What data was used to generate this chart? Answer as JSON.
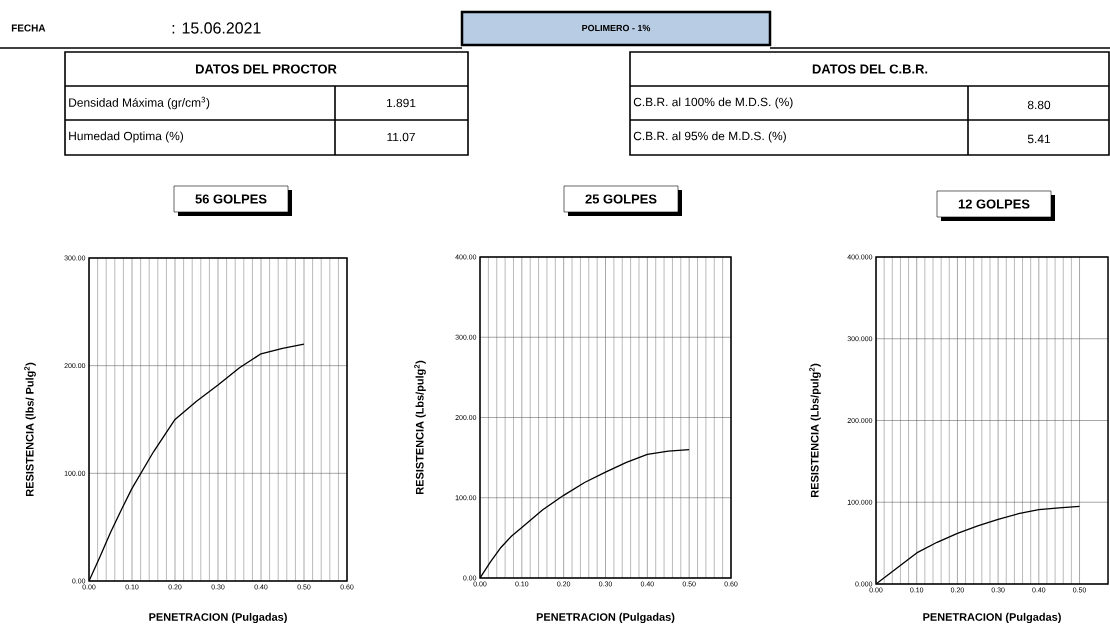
{
  "chart_data": [
    {
      "type": "other",
      "title": "POLIMERO - 1%",
      "annotations": [
        "FECHA",
        ": 15.06.2021",
        "DATOS DEL PROCTOR",
        "Densidad Máxima (gr/cm$^{3}$)",
        "1.891",
        "Humedad Optima (%)",
        "11.07",
        "DATOS DEL C.B.R.",
        "C.B.R. al 100% de M.D.S. (%)",
        "8.80",
        "C.B.R. al 95% de M.D.S. (%)",
        "5.41"
      ]
    },
    {
      "type": "line",
      "title": "56 GOLPES",
      "xlabel": "PENETRACION (Pulgadas)",
      "ylabel": "RESISTENCIA (lbs/ Pulg$^{2}$)",
      "color": "#000000",
      "grid": true,
      "x": [
        0,
        0.025,
        0.05,
        0.075,
        0.1,
        0.15,
        0.2,
        0.25,
        0.3,
        0.35,
        0.4,
        0.45,
        0.5
      ],
      "values": [
        0,
        22,
        45,
        66,
        86,
        120,
        150,
        167,
        182,
        198,
        211,
        216,
        220
      ],
      "xlim": [
        0,
        0.6
      ],
      "ylim": [
        0,
        300
      ],
      "xticks": [
        {
          "value": 0,
          "label": "0.00"
        },
        {
          "value": 0.1,
          "label": "0.10"
        },
        {
          "value": 0.2,
          "label": "0.20"
        },
        {
          "value": 0.3,
          "label": "0.30"
        },
        {
          "value": 0.4,
          "label": "0.40"
        },
        {
          "value": 0.5,
          "label": "0.50"
        },
        {
          "value": 0.6,
          "label": "0.60"
        }
      ],
      "yticks": [
        {
          "value": 0,
          "label": "0.00"
        },
        {
          "value": 100,
          "label": "100.00"
        },
        {
          "value": 200,
          "label": "200.00"
        },
        {
          "value": 300,
          "label": "300.00"
        }
      ]
    },
    {
      "type": "line",
      "title": "25 GOLPES",
      "xlabel": "PENETRACION (Pulgadas)",
      "ylabel": "RESISTENCIA (Lbs/pulg$^{2}$)",
      "color": "#000000",
      "grid": true,
      "x": [
        0,
        0.025,
        0.05,
        0.075,
        0.1,
        0.15,
        0.2,
        0.25,
        0.3,
        0.35,
        0.4,
        0.45,
        0.5
      ],
      "values": [
        0,
        20,
        38,
        52,
        63,
        85,
        103,
        119,
        132,
        144,
        154,
        158,
        160
      ],
      "xlim": [
        0,
        0.6
      ],
      "ylim": [
        0,
        400
      ],
      "xticks": [
        {
          "value": 0,
          "label": "0.00"
        },
        {
          "value": 0.1,
          "label": "0.10"
        },
        {
          "value": 0.2,
          "label": "0.20"
        },
        {
          "value": 0.3,
          "label": "0.30"
        },
        {
          "value": 0.4,
          "label": "0.40"
        },
        {
          "value": 0.5,
          "label": "0.50"
        },
        {
          "value": 0.6,
          "label": "0.60"
        }
      ],
      "yticks": [
        {
          "value": 0,
          "label": "0.00"
        },
        {
          "value": 100,
          "label": "100.00"
        },
        {
          "value": 200,
          "label": "200.00"
        },
        {
          "value": 300,
          "label": "300.00"
        },
        {
          "value": 400,
          "label": "400.00"
        }
      ]
    },
    {
      "type": "line",
      "title": "12 GOLPES",
      "xlabel": "PENETRACION (Pulgadas)",
      "ylabel": "RESISTENCIA (Lbs/pulg$^{2}$)",
      "color": "#000000",
      "grid": true,
      "x": [
        0,
        0.05,
        0.1,
        0.15,
        0.2,
        0.25,
        0.3,
        0.35,
        0.4,
        0.45,
        0.5
      ],
      "values": [
        0,
        19,
        38,
        51,
        62,
        71,
        79,
        86,
        91,
        93,
        95
      ],
      "xlim": [
        0,
        0.57
      ],
      "ylim": [
        0,
        400
      ],
      "xticks": [
        {
          "value": 0,
          "label": "0.00"
        },
        {
          "value": 0.1,
          "label": "0.10"
        },
        {
          "value": 0.2,
          "label": "0.20"
        },
        {
          "value": 0.3,
          "label": "0.30"
        },
        {
          "value": 0.4,
          "label": "0.40"
        },
        {
          "value": 0.5,
          "label": "0.50"
        }
      ],
      "yticks": [
        {
          "value": 0,
          "label": "0.000"
        },
        {
          "value": 100,
          "label": "100.000"
        },
        {
          "value": 200,
          "label": "200.000"
        },
        {
          "value": 300,
          "label": "300.000"
        },
        {
          "value": 400,
          "label": "400.000"
        }
      ]
    }
  ]
}
